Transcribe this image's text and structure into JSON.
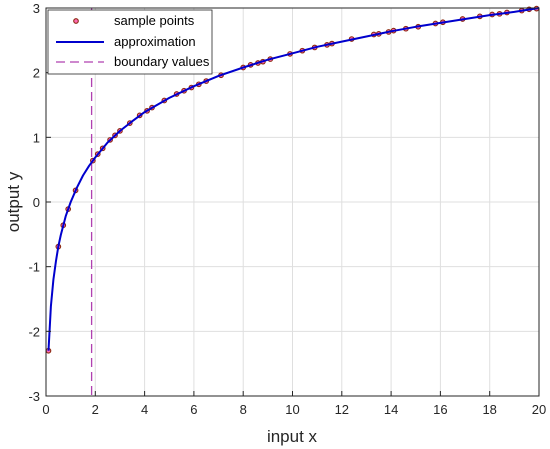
{
  "chart_data": {
    "type": "line",
    "title": "",
    "xlabel": "input x",
    "ylabel": "output y",
    "xlim": [
      0,
      20
    ],
    "ylim": [
      -3,
      3
    ],
    "xticks": [
      0,
      2,
      4,
      6,
      8,
      10,
      12,
      14,
      16,
      18,
      20
    ],
    "yticks": [
      -3,
      -2,
      -1,
      0,
      1,
      2,
      3
    ],
    "grid": true,
    "legend_position": "top-left",
    "series": [
      {
        "name": "sample points",
        "type": "scatter",
        "marker_edge_color": "#8b2a10",
        "marker_fill_color": "#ff69b4",
        "x": [
          0.1,
          0.5,
          0.7,
          0.9,
          1.2,
          1.9,
          2.1,
          2.3,
          2.6,
          2.8,
          3.0,
          3.4,
          3.8,
          4.1,
          4.3,
          4.8,
          5.3,
          5.6,
          5.9,
          6.2,
          6.5,
          7.1,
          8.0,
          8.3,
          8.6,
          8.8,
          9.1,
          9.9,
          10.4,
          10.9,
          11.4,
          11.6,
          12.4,
          13.3,
          13.5,
          13.9,
          14.1,
          14.6,
          15.1,
          15.8,
          16.1,
          16.9,
          17.6,
          18.1,
          18.4,
          18.7,
          19.3,
          19.6,
          19.9
        ],
        "y": [
          -2.3,
          -0.69,
          -0.36,
          -0.11,
          0.18,
          0.64,
          0.74,
          0.83,
          0.96,
          1.03,
          1.1,
          1.22,
          1.34,
          1.41,
          1.46,
          1.57,
          1.67,
          1.72,
          1.77,
          1.82,
          1.87,
          1.96,
          2.08,
          2.12,
          2.15,
          2.17,
          2.21,
          2.29,
          2.34,
          2.39,
          2.43,
          2.45,
          2.52,
          2.59,
          2.6,
          2.63,
          2.65,
          2.68,
          2.71,
          2.76,
          2.78,
          2.83,
          2.87,
          2.9,
          2.91,
          2.93,
          2.96,
          2.98,
          2.99
        ]
      },
      {
        "name": "approximation",
        "type": "line",
        "color": "#0000cd",
        "x": [
          0.1,
          0.2,
          0.3,
          0.4,
          0.5,
          0.6,
          0.8,
          1.0,
          1.25,
          1.5,
          1.75,
          2.0,
          2.5,
          3.0,
          3.5,
          4.0,
          5.0,
          6.0,
          7.0,
          8.0,
          9.0,
          10.0,
          11.0,
          12.0,
          13.0,
          14.0,
          15.0,
          16.0,
          17.0,
          18.0,
          19.0,
          20.0
        ],
        "y": [
          -2.3,
          -1.61,
          -1.2,
          -0.92,
          -0.69,
          -0.51,
          -0.22,
          0.0,
          0.22,
          0.41,
          0.56,
          0.69,
          0.92,
          1.1,
          1.25,
          1.39,
          1.61,
          1.79,
          1.95,
          2.08,
          2.2,
          2.3,
          2.4,
          2.48,
          2.56,
          2.64,
          2.71,
          2.77,
          2.83,
          2.89,
          2.94,
          3.0
        ]
      },
      {
        "name": "boundary values",
        "type": "vline",
        "color": "#b040b0",
        "dashed": true,
        "x": [
          1.85
        ]
      }
    ]
  }
}
